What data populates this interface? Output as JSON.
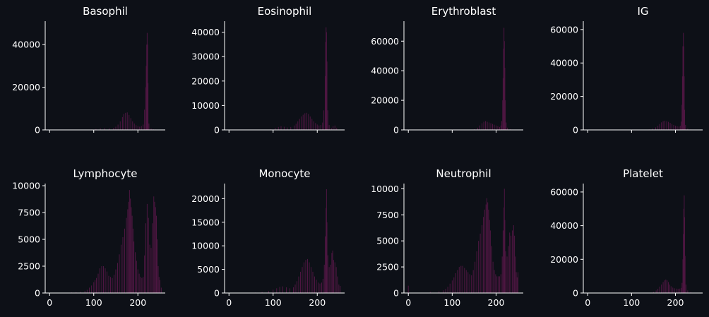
{
  "figure": {
    "background": "#0d1017",
    "text_color": "#ffffff",
    "bar_color": "#4d1641"
  },
  "chart_data": [
    {
      "type": "bar",
      "title": "Basophil",
      "xlim": [
        -10,
        262
      ],
      "ylim": [
        0,
        51000
      ],
      "xticks": [
        0,
        100,
        200
      ],
      "show_xtick_labels": false,
      "yticks": [
        0,
        20000,
        40000
      ],
      "ytick_labels": [
        "0",
        "20000",
        "40000"
      ],
      "bins": [
        [
          95,
          200
        ],
        [
          105,
          400
        ],
        [
          115,
          700
        ],
        [
          125,
          800
        ],
        [
          135,
          700
        ],
        [
          145,
          1000
        ],
        [
          150,
          1500
        ],
        [
          155,
          2500
        ],
        [
          160,
          4000
        ],
        [
          165,
          6000
        ],
        [
          168,
          7500
        ],
        [
          172,
          8000
        ],
        [
          176,
          8200
        ],
        [
          180,
          7000
        ],
        [
          184,
          5500
        ],
        [
          188,
          4000
        ],
        [
          192,
          3000
        ],
        [
          196,
          2200
        ],
        [
          200,
          1800
        ],
        [
          204,
          1500
        ],
        [
          208,
          1800
        ],
        [
          212,
          2500
        ],
        [
          215,
          9500
        ],
        [
          218,
          20000
        ],
        [
          219,
          30000
        ],
        [
          220,
          40000
        ],
        [
          221,
          45500
        ],
        [
          222,
          40000
        ],
        [
          223,
          22000
        ],
        [
          225,
          3000
        ],
        [
          230,
          600
        ],
        [
          235,
          300
        ],
        [
          240,
          200
        ]
      ]
    },
    {
      "type": "bar",
      "title": "Eosinophil",
      "xlim": [
        -10,
        262
      ],
      "ylim": [
        0,
        44500
      ],
      "xticks": [
        0,
        100,
        200
      ],
      "show_xtick_labels": false,
      "yticks": [
        0,
        10000,
        20000,
        30000,
        40000
      ],
      "ytick_labels": [
        "0",
        "10000",
        "20000",
        "30000",
        "40000"
      ],
      "bins": [
        [
          95,
          300
        ],
        [
          105,
          800
        ],
        [
          112,
          1200
        ],
        [
          118,
          1500
        ],
        [
          125,
          1300
        ],
        [
          132,
          1000
        ],
        [
          140,
          1200
        ],
        [
          148,
          1800
        ],
        [
          152,
          2500
        ],
        [
          156,
          3500
        ],
        [
          160,
          4500
        ],
        [
          164,
          5500
        ],
        [
          168,
          6200
        ],
        [
          172,
          6800
        ],
        [
          176,
          7000
        ],
        [
          180,
          6500
        ],
        [
          184,
          5500
        ],
        [
          188,
          4500
        ],
        [
          192,
          3500
        ],
        [
          196,
          2800
        ],
        [
          200,
          2200
        ],
        [
          204,
          1800
        ],
        [
          208,
          2000
        ],
        [
          212,
          3000
        ],
        [
          215,
          8000
        ],
        [
          218,
          22000
        ],
        [
          219,
          36000
        ],
        [
          220,
          42000
        ],
        [
          221,
          40000
        ],
        [
          222,
          28000
        ],
        [
          224,
          8000
        ],
        [
          227,
          2000
        ],
        [
          232,
          800
        ],
        [
          236,
          1500
        ],
        [
          240,
          1800
        ],
        [
          244,
          800
        ]
      ]
    },
    {
      "type": "bar",
      "title": "Erythroblast",
      "xlim": [
        -10,
        262
      ],
      "ylim": [
        0,
        73500
      ],
      "xticks": [
        0,
        100,
        200
      ],
      "show_xtick_labels": false,
      "yticks": [
        0,
        20000,
        40000,
        60000
      ],
      "ytick_labels": [
        "0",
        "20000",
        "40000",
        "60000"
      ],
      "bins": [
        [
          150,
          500
        ],
        [
          158,
          1500
        ],
        [
          163,
          3000
        ],
        [
          168,
          4500
        ],
        [
          172,
          5500
        ],
        [
          176,
          6000
        ],
        [
          180,
          5500
        ],
        [
          184,
          5000
        ],
        [
          188,
          4500
        ],
        [
          192,
          4000
        ],
        [
          196,
          3500
        ],
        [
          200,
          3000
        ],
        [
          204,
          2500
        ],
        [
          208,
          2000
        ],
        [
          211,
          3000
        ],
        [
          213,
          6000
        ],
        [
          215,
          20000
        ],
        [
          216,
          35000
        ],
        [
          217,
          55000
        ],
        [
          218,
          69000
        ],
        [
          219,
          60000
        ],
        [
          220,
          42000
        ],
        [
          221,
          20000
        ],
        [
          223,
          5000
        ],
        [
          226,
          1500
        ],
        [
          232,
          500
        ],
        [
          240,
          200
        ]
      ]
    },
    {
      "type": "bar",
      "title": "IG",
      "xlim": [
        -10,
        262
      ],
      "ylim": [
        0,
        65000
      ],
      "xticks": [
        0,
        100,
        200
      ],
      "show_xtick_labels": false,
      "yticks": [
        0,
        20000,
        40000,
        60000
      ],
      "ytick_labels": [
        "0",
        "20000",
        "40000",
        "60000"
      ],
      "bins": [
        [
          140,
          300
        ],
        [
          148,
          800
        ],
        [
          155,
          1500
        ],
        [
          160,
          2500
        ],
        [
          164,
          3500
        ],
        [
          168,
          4500
        ],
        [
          172,
          5200
        ],
        [
          176,
          5500
        ],
        [
          180,
          5200
        ],
        [
          184,
          4800
        ],
        [
          188,
          4200
        ],
        [
          192,
          3500
        ],
        [
          196,
          3000
        ],
        [
          200,
          2500
        ],
        [
          204,
          2200
        ],
        [
          208,
          2000
        ],
        [
          211,
          2500
        ],
        [
          213,
          5000
        ],
        [
          215,
          15000
        ],
        [
          216,
          32000
        ],
        [
          217,
          50000
        ],
        [
          218,
          58000
        ],
        [
          219,
          50000
        ],
        [
          220,
          32000
        ],
        [
          221,
          12000
        ],
        [
          223,
          3000
        ],
        [
          228,
          800
        ],
        [
          235,
          300
        ]
      ]
    },
    {
      "type": "bar",
      "title": "Lymphocyte",
      "xlim": [
        -10,
        262
      ],
      "ylim": [
        0,
        10200
      ],
      "xticks": [
        0,
        100,
        200
      ],
      "show_xtick_labels": true,
      "yticks": [
        0,
        2500,
        5000,
        7500,
        10000
      ],
      "ytick_labels": [
        "0",
        "2500",
        "5000",
        "7500",
        "10000"
      ],
      "bins": [
        [
          50,
          50
        ],
        [
          60,
          80
        ],
        [
          70,
          100
        ],
        [
          80,
          200
        ],
        [
          85,
          300
        ],
        [
          90,
          500
        ],
        [
          95,
          700
        ],
        [
          100,
          1000
        ],
        [
          103,
          1200
        ],
        [
          106,
          1400
        ],
        [
          110,
          1800
        ],
        [
          114,
          2300
        ],
        [
          118,
          2500
        ],
        [
          122,
          2500
        ],
        [
          126,
          2300
        ],
        [
          130,
          2000
        ],
        [
          134,
          1600
        ],
        [
          138,
          1500
        ],
        [
          142,
          1400
        ],
        [
          146,
          1700
        ],
        [
          150,
          2200
        ],
        [
          154,
          2800
        ],
        [
          158,
          3600
        ],
        [
          162,
          4500
        ],
        [
          166,
          5200
        ],
        [
          170,
          6000
        ],
        [
          174,
          7000
        ],
        [
          177,
          7800
        ],
        [
          179,
          8500
        ],
        [
          181,
          9600
        ],
        [
          183,
          8800
        ],
        [
          185,
          8000
        ],
        [
          187,
          7200
        ],
        [
          189,
          6000
        ],
        [
          191,
          4800
        ],
        [
          194,
          3800
        ],
        [
          197,
          3000
        ],
        [
          200,
          2200
        ],
        [
          203,
          1800
        ],
        [
          206,
          1500
        ],
        [
          209,
          1400
        ],
        [
          212,
          1500
        ],
        [
          215,
          3500
        ],
        [
          218,
          6500
        ],
        [
          221,
          8300
        ],
        [
          224,
          7000
        ],
        [
          227,
          4500
        ],
        [
          230,
          4200
        ],
        [
          233,
          6500
        ],
        [
          236,
          9000
        ],
        [
          238,
          8500
        ],
        [
          240,
          8000
        ],
        [
          242,
          7200
        ],
        [
          244,
          5000
        ],
        [
          246,
          2500
        ],
        [
          248,
          1500
        ],
        [
          250,
          1200
        ],
        [
          253,
          500
        ]
      ]
    },
    {
      "type": "bar",
      "title": "Monocyte",
      "xlim": [
        -10,
        262
      ],
      "ylim": [
        0,
        23200
      ],
      "xticks": [
        0,
        100,
        200
      ],
      "show_xtick_labels": true,
      "yticks": [
        0,
        5000,
        10000,
        15000,
        20000
      ],
      "ytick_labels": [
        "0",
        "5000",
        "10000",
        "15000",
        "20000"
      ],
      "bins": [
        [
          60,
          100
        ],
        [
          75,
          200
        ],
        [
          90,
          400
        ],
        [
          100,
          700
        ],
        [
          108,
          1000
        ],
        [
          115,
          1300
        ],
        [
          122,
          1400
        ],
        [
          130,
          1200
        ],
        [
          138,
          1000
        ],
        [
          146,
          1200
        ],
        [
          150,
          1800
        ],
        [
          154,
          2500
        ],
        [
          158,
          3500
        ],
        [
          162,
          4500
        ],
        [
          166,
          5500
        ],
        [
          170,
          6500
        ],
        [
          174,
          7000
        ],
        [
          178,
          7200
        ],
        [
          182,
          6500
        ],
        [
          186,
          5500
        ],
        [
          190,
          4500
        ],
        [
          194,
          3500
        ],
        [
          198,
          2800
        ],
        [
          202,
          2200
        ],
        [
          206,
          2000
        ],
        [
          210,
          2200
        ],
        [
          213,
          3000
        ],
        [
          216,
          6000
        ],
        [
          218,
          12000
        ],
        [
          220,
          18000
        ],
        [
          221,
          22000
        ],
        [
          222,
          15000
        ],
        [
          224,
          8000
        ],
        [
          227,
          5500
        ],
        [
          230,
          6000
        ],
        [
          233,
          8500
        ],
        [
          235,
          9000
        ],
        [
          237,
          7000
        ],
        [
          240,
          6500
        ],
        [
          243,
          5500
        ],
        [
          246,
          3500
        ],
        [
          249,
          1800
        ],
        [
          252,
          1500
        ]
      ]
    },
    {
      "type": "bar",
      "title": "Neutrophil",
      "xlim": [
        -10,
        262
      ],
      "ylim": [
        0,
        10500
      ],
      "xticks": [
        0,
        100,
        200
      ],
      "show_xtick_labels": true,
      "yticks": [
        0,
        2500,
        5000,
        7500,
        10000
      ],
      "ytick_labels": [
        "0",
        "2500",
        "5000",
        "7500",
        "10000"
      ],
      "bins": [
        [
          0,
          700
        ],
        [
          50,
          100
        ],
        [
          70,
          150
        ],
        [
          80,
          250
        ],
        [
          85,
          400
        ],
        [
          90,
          600
        ],
        [
          95,
          900
        ],
        [
          100,
          1200
        ],
        [
          104,
          1500
        ],
        [
          108,
          1900
        ],
        [
          112,
          2200
        ],
        [
          116,
          2500
        ],
        [
          120,
          2600
        ],
        [
          124,
          2600
        ],
        [
          128,
          2400
        ],
        [
          132,
          2200
        ],
        [
          136,
          2000
        ],
        [
          140,
          1800
        ],
        [
          144,
          1700
        ],
        [
          148,
          2200
        ],
        [
          152,
          3000
        ],
        [
          156,
          4000
        ],
        [
          160,
          5000
        ],
        [
          164,
          5700
        ],
        [
          168,
          6500
        ],
        [
          171,
          7300
        ],
        [
          174,
          8000
        ],
        [
          177,
          8500
        ],
        [
          179,
          9100
        ],
        [
          181,
          8700
        ],
        [
          183,
          8000
        ],
        [
          185,
          7000
        ],
        [
          187,
          6000
        ],
        [
          190,
          4500
        ],
        [
          193,
          3000
        ],
        [
          196,
          2200
        ],
        [
          199,
          1800
        ],
        [
          202,
          1600
        ],
        [
          205,
          1600
        ],
        [
          208,
          1600
        ],
        [
          211,
          1800
        ],
        [
          214,
          3500
        ],
        [
          216,
          6000
        ],
        [
          218,
          8200
        ],
        [
          219,
          10000
        ],
        [
          220,
          7000
        ],
        [
          222,
          4000
        ],
        [
          225,
          3500
        ],
        [
          228,
          4500
        ],
        [
          231,
          5800
        ],
        [
          234,
          5500
        ],
        [
          237,
          6000
        ],
        [
          240,
          6500
        ],
        [
          242,
          5500
        ],
        [
          244,
          3500
        ],
        [
          246,
          2000
        ],
        [
          248,
          1500
        ],
        [
          250,
          2000
        ]
      ]
    },
    {
      "type": "bar",
      "title": "Platelet",
      "xlim": [
        -10,
        262
      ],
      "ylim": [
        0,
        65000
      ],
      "xticks": [
        0,
        100,
        200
      ],
      "show_xtick_labels": true,
      "yticks": [
        0,
        20000,
        40000,
        60000
      ],
      "ytick_labels": [
        "0",
        "20000",
        "40000",
        "60000"
      ],
      "bins": [
        [
          140,
          200
        ],
        [
          150,
          600
        ],
        [
          156,
          1500
        ],
        [
          160,
          2500
        ],
        [
          164,
          3800
        ],
        [
          168,
          5000
        ],
        [
          172,
          6500
        ],
        [
          175,
          7500
        ],
        [
          178,
          8000
        ],
        [
          181,
          7500
        ],
        [
          184,
          6500
        ],
        [
          187,
          5000
        ],
        [
          190,
          4000
        ],
        [
          194,
          3200
        ],
        [
          198,
          2800
        ],
        [
          202,
          2600
        ],
        [
          206,
          2500
        ],
        [
          210,
          2600
        ],
        [
          213,
          3000
        ],
        [
          215,
          6000
        ],
        [
          217,
          20000
        ],
        [
          218,
          35000
        ],
        [
          219,
          50000
        ],
        [
          220,
          58000
        ],
        [
          221,
          45000
        ],
        [
          222,
          22000
        ],
        [
          224,
          5000
        ],
        [
          228,
          1500
        ],
        [
          235,
          500
        ]
      ]
    }
  ]
}
